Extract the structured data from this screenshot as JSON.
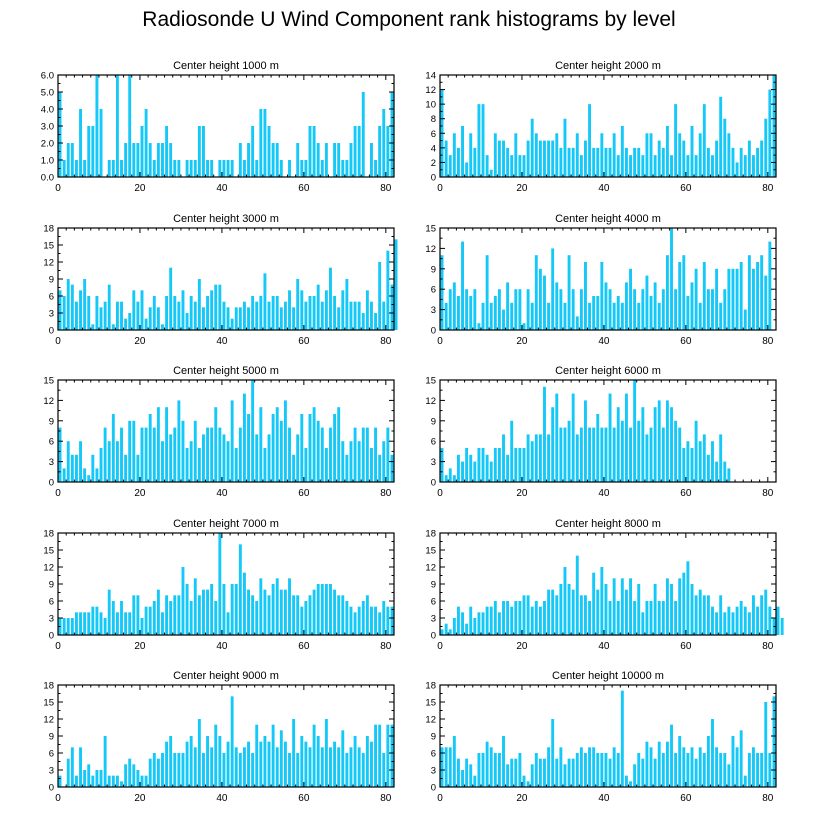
{
  "figure": {
    "title": "Radiosonde U Wind Component rank histograms by level",
    "bar_color": "#14c8f8",
    "axis_color": "#000000"
  },
  "chart_data": [
    {
      "type": "bar",
      "title": "Center height 1000 m",
      "x_start": 0,
      "xlim": [
        0,
        82
      ],
      "xticks": [
        0,
        20,
        40,
        60,
        80
      ],
      "ylim": [
        0,
        6
      ],
      "yticks": [
        0.0,
        1.0,
        2.0,
        3.0,
        4.0,
        5.0,
        6.0
      ],
      "ytick_labels": [
        "0.0",
        "1.0",
        "2.0",
        "3.0",
        "4.0",
        "5.0",
        "6.0"
      ],
      "values": [
        5,
        1,
        2,
        2,
        1,
        4,
        1,
        3,
        3,
        6,
        4,
        0,
        1,
        1,
        6,
        1,
        2,
        6,
        2,
        2,
        3,
        4,
        2,
        1,
        2,
        2,
        3,
        2,
        1,
        1,
        0,
        1,
        1,
        1,
        3,
        3,
        1,
        1,
        0,
        1,
        1,
        1,
        1,
        0,
        2,
        1,
        2,
        3,
        1,
        4,
        4,
        3,
        2,
        2,
        1,
        0,
        1,
        0,
        2,
        1,
        1,
        3,
        3,
        2,
        1,
        2,
        0,
        2,
        2,
        1,
        1,
        2,
        3,
        3,
        5,
        0,
        2,
        1,
        3,
        4,
        3,
        5
      ]
    },
    {
      "type": "bar",
      "title": "Center height 2000 m",
      "x_start": 0,
      "xlim": [
        0,
        82
      ],
      "xticks": [
        0,
        20,
        40,
        60,
        80
      ],
      "ylim": [
        0,
        14
      ],
      "yticks": [
        0,
        2,
        4,
        6,
        8,
        10,
        12,
        14
      ],
      "ytick_labels": [
        "0",
        "2",
        "4",
        "6",
        "8",
        "10",
        "12",
        "14"
      ],
      "values": [
        12,
        5,
        3,
        6,
        4,
        7,
        2,
        6,
        4,
        10,
        10,
        3,
        1,
        6,
        5,
        5,
        4,
        3,
        6,
        3,
        3,
        5,
        8,
        6,
        5,
        5,
        5,
        5,
        6,
        4,
        8,
        4,
        4,
        6,
        3,
        5,
        10,
        4,
        4,
        6,
        4,
        4,
        6,
        3,
        7,
        4,
        3,
        4,
        4,
        3,
        6,
        6,
        3,
        5,
        4,
        7,
        3,
        10,
        6,
        5,
        3,
        7,
        3,
        6,
        10,
        4,
        3,
        5,
        11,
        8,
        6,
        4,
        2,
        4,
        3,
        5,
        3,
        4,
        5,
        8,
        12,
        14
      ]
    },
    {
      "type": "bar",
      "title": "Center height 3000 m",
      "x_start": 0,
      "xlim": [
        0,
        82
      ],
      "xticks": [
        0,
        20,
        40,
        60,
        80
      ],
      "ylim": [
        0,
        18
      ],
      "yticks": [
        0,
        3,
        6,
        9,
        12,
        15,
        18
      ],
      "ytick_labels": [
        "0",
        "3",
        "6",
        "9",
        "12",
        "15",
        "18"
      ],
      "values": [
        7,
        6,
        9,
        8,
        5,
        7,
        9,
        6,
        1,
        6,
        4,
        5,
        8,
        1,
        5,
        5,
        2,
        3,
        7,
        5,
        7,
        2,
        4,
        6,
        4,
        1,
        6,
        11,
        6,
        5,
        7,
        3,
        6,
        5,
        9,
        4,
        6,
        7,
        8,
        8,
        5,
        4,
        2,
        4,
        4,
        5,
        4,
        6,
        5,
        6,
        10,
        5,
        6,
        6,
        4,
        5,
        7,
        4,
        9,
        7,
        5,
        6,
        6,
        8,
        5,
        7,
        11,
        6,
        4,
        7,
        9,
        5,
        5,
        5,
        3,
        7,
        5,
        3,
        12,
        5,
        14,
        8,
        16
      ]
    },
    {
      "type": "bar",
      "title": "Center height 4000 m",
      "x_start": 0,
      "xlim": [
        0,
        82
      ],
      "xticks": [
        0,
        20,
        40,
        60,
        80
      ],
      "ylim": [
        0,
        15
      ],
      "yticks": [
        0,
        3,
        6,
        9,
        12,
        15
      ],
      "ytick_labels": [
        "0",
        "3",
        "6",
        "9",
        "12",
        "15"
      ],
      "values": [
        11,
        4,
        6,
        7,
        5,
        13,
        6,
        5,
        6,
        1,
        4,
        11,
        4,
        5,
        6,
        3,
        7,
        4,
        6,
        6,
        1,
        6,
        4,
        11,
        9,
        8,
        4,
        12,
        7,
        6,
        4,
        11,
        6,
        2,
        6,
        10,
        4,
        5,
        5,
        10,
        7,
        6,
        4,
        5,
        4,
        7,
        9,
        6,
        4,
        6,
        8,
        5,
        7,
        4,
        6,
        11,
        15,
        6,
        10,
        11,
        5,
        7,
        9,
        4,
        10,
        6,
        6,
        9,
        4,
        6,
        9,
        9,
        9,
        10,
        3,
        11,
        9,
        10,
        11,
        8,
        13
      ]
    },
    {
      "type": "bar",
      "title": "Center height 5000 m",
      "x_start": 0,
      "xlim": [
        0,
        82
      ],
      "xticks": [
        0,
        20,
        40,
        60,
        80
      ],
      "ylim": [
        0,
        15
      ],
      "yticks": [
        0,
        3,
        6,
        9,
        12,
        15
      ],
      "ytick_labels": [
        "0",
        "3",
        "6",
        "9",
        "12",
        "15"
      ],
      "values": [
        8,
        2,
        6,
        4,
        4,
        6,
        2,
        1,
        4,
        2,
        5,
        8,
        6,
        10,
        6,
        8,
        4,
        9,
        9,
        4,
        8,
        8,
        10,
        8,
        11,
        6,
        11,
        7,
        8,
        12,
        9,
        5,
        6,
        9,
        5,
        7,
        8,
        8,
        11,
        8,
        7,
        6,
        12,
        5,
        8,
        13,
        10,
        15,
        7,
        11,
        5,
        7,
        10,
        11,
        9,
        12,
        8,
        4,
        7,
        10,
        5,
        10,
        11,
        9,
        8,
        5,
        8,
        10,
        11,
        6,
        4,
        6,
        8,
        6,
        8,
        8,
        5,
        8,
        4,
        6,
        8,
        4
      ]
    },
    {
      "type": "bar",
      "title": "Center height 6000 m",
      "x_start": 0,
      "xlim": [
        0,
        82
      ],
      "xticks": [
        0,
        20,
        40,
        60,
        80
      ],
      "ylim": [
        0,
        15
      ],
      "yticks": [
        0,
        3,
        6,
        9,
        12,
        15
      ],
      "ytick_labels": [
        "0",
        "3",
        "6",
        "9",
        "12",
        "15"
      ],
      "values": [
        5,
        1,
        2,
        1,
        4,
        3,
        5,
        4,
        3,
        5,
        5,
        4,
        3,
        5,
        5,
        7,
        4,
        9,
        5,
        5,
        5,
        7,
        6,
        7,
        7,
        14,
        7,
        11,
        13,
        8,
        8,
        9,
        13,
        7,
        8,
        12,
        8,
        8,
        10,
        8,
        8,
        13,
        8,
        11,
        9,
        13,
        8,
        15,
        9,
        11,
        7,
        8,
        11,
        12,
        8,
        12,
        11,
        9,
        8,
        5,
        6,
        5,
        9,
        6,
        7,
        4,
        6,
        3,
        7,
        3,
        2
      ]
    },
    {
      "type": "bar",
      "title": "Center height 7000 m",
      "x_start": 0,
      "xlim": [
        0,
        82
      ],
      "xticks": [
        0,
        20,
        40,
        60,
        80
      ],
      "ylim": [
        0,
        18
      ],
      "yticks": [
        0,
        3,
        6,
        9,
        12,
        15,
        18
      ],
      "ytick_labels": [
        "0",
        "3",
        "6",
        "9",
        "12",
        "15",
        "18"
      ],
      "values": [
        3,
        3,
        3,
        3,
        4,
        4,
        4,
        4,
        5,
        5,
        4,
        3,
        8,
        6,
        4,
        6,
        4,
        4,
        7,
        7,
        3,
        5,
        5,
        6,
        8,
        4,
        7,
        6,
        7,
        7,
        12,
        9,
        6,
        10,
        7,
        8,
        8,
        9,
        6,
        18,
        9,
        4,
        9,
        9,
        16,
        11,
        8,
        7,
        6,
        10,
        8,
        7,
        9,
        10,
        8,
        8,
        10,
        7,
        7,
        5,
        6,
        7,
        8,
        9,
        9,
        9,
        9,
        8,
        7,
        7,
        6,
        5,
        4,
        5,
        6,
        7,
        5,
        5,
        4,
        6,
        5,
        5
      ]
    },
    {
      "type": "bar",
      "title": "Center height 8000 m",
      "x_start": 0,
      "xlim": [
        0,
        82
      ],
      "xticks": [
        0,
        20,
        40,
        60,
        80
      ],
      "ylim": [
        0,
        18
      ],
      "yticks": [
        0,
        3,
        6,
        9,
        12,
        15,
        18
      ],
      "ytick_labels": [
        "0",
        "3",
        "6",
        "9",
        "12",
        "15",
        "18"
      ],
      "values": [
        1,
        2,
        1,
        3,
        5,
        4,
        2,
        5,
        3,
        4,
        4,
        5,
        5,
        6,
        4,
        6,
        6,
        5,
        6,
        6,
        7,
        7,
        5,
        6,
        5,
        6,
        8,
        8,
        7,
        9,
        12,
        9,
        8,
        14,
        7,
        7,
        6,
        11,
        8,
        12,
        9,
        6,
        10,
        6,
        10,
        8,
        10,
        6,
        9,
        4,
        6,
        6,
        9,
        6,
        6,
        10,
        9,
        6,
        10,
        11,
        13,
        9,
        7,
        8,
        7,
        7,
        5,
        4,
        7,
        4,
        5,
        4,
        5,
        6,
        5,
        4,
        7,
        5,
        7,
        8,
        5,
        3,
        5,
        3
      ]
    },
    {
      "type": "bar",
      "title": "Center height 9000 m",
      "x_start": 0,
      "xlim": [
        0,
        82
      ],
      "xticks": [
        0,
        20,
        40,
        60,
        80
      ],
      "ylim": [
        0,
        18
      ],
      "yticks": [
        0,
        3,
        6,
        9,
        12,
        15,
        18
      ],
      "ytick_labels": [
        "0",
        "3",
        "6",
        "9",
        "12",
        "15",
        "18"
      ],
      "values": [
        2,
        0,
        5,
        7,
        2,
        7,
        3,
        4,
        2,
        3,
        3,
        9,
        2,
        2,
        2,
        1,
        4,
        5,
        4,
        3,
        2,
        2,
        5,
        6,
        5,
        6,
        8,
        9,
        6,
        6,
        6,
        8,
        9,
        7,
        12,
        6,
        9,
        7,
        11,
        9,
        6,
        8,
        16,
        7,
        6,
        7,
        8,
        6,
        11,
        8,
        9,
        8,
        11,
        7,
        10,
        8,
        6,
        12,
        6,
        9,
        8,
        7,
        11,
        9,
        7,
        12,
        7,
        8,
        7,
        10,
        6,
        7,
        9,
        7,
        6,
        9,
        8,
        11,
        11,
        6,
        11,
        11
      ]
    },
    {
      "type": "bar",
      "title": "Center height 10000 m",
      "x_start": 0,
      "xlim": [
        0,
        82
      ],
      "xticks": [
        0,
        20,
        40,
        60,
        80
      ],
      "ylim": [
        0,
        18
      ],
      "yticks": [
        0,
        3,
        6,
        9,
        12,
        15,
        18
      ],
      "ytick_labels": [
        "0",
        "3",
        "6",
        "9",
        "12",
        "15",
        "18"
      ],
      "values": [
        7,
        7,
        7,
        9,
        5,
        3,
        5,
        4,
        2,
        6,
        6,
        8,
        7,
        6,
        6,
        9,
        4,
        5,
        5,
        6,
        2,
        1,
        4,
        6,
        5,
        5,
        7,
        12,
        5,
        7,
        4,
        5,
        5,
        6,
        7,
        6,
        7,
        7,
        6,
        6,
        6,
        5,
        7,
        6,
        17,
        2,
        1,
        4,
        6,
        5,
        8,
        7,
        5,
        8,
        6,
        8,
        11,
        6,
        9,
        7,
        6,
        7,
        5,
        7,
        6,
        9,
        12,
        7,
        6,
        6,
        4,
        9,
        7,
        10,
        2,
        6,
        7,
        6,
        6,
        15,
        6,
        16
      ]
    }
  ]
}
